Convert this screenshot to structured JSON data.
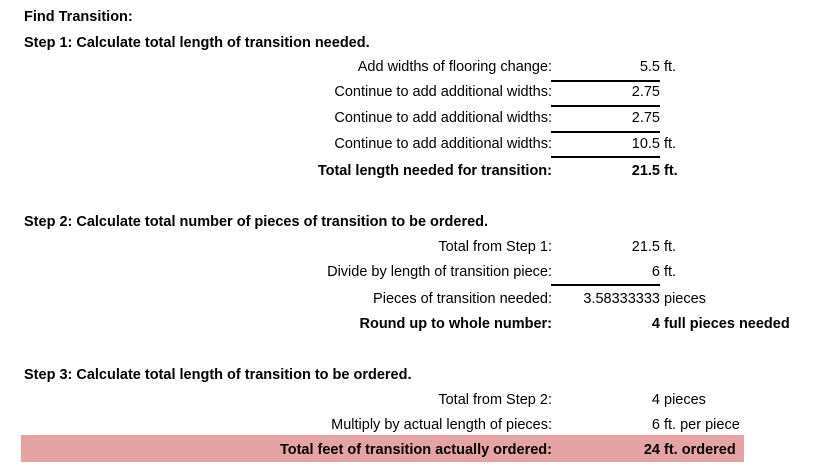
{
  "title": "Find Transition:",
  "step1": {
    "heading": "Step 1: Calculate total length of transition needed.",
    "rows": [
      {
        "label": "Add widths of flooring change:",
        "value": "5.5",
        "unit": "ft."
      },
      {
        "label": "Continue to add additional widths:",
        "value": "2.75",
        "unit": ""
      },
      {
        "label": "Continue to add additional widths:",
        "value": "2.75",
        "unit": ""
      },
      {
        "label": "Continue to add additional widths:",
        "value": "10.5",
        "unit": "ft."
      },
      {
        "label": "Total length needed for transition:",
        "value": "21.5",
        "unit": "ft."
      }
    ]
  },
  "step2": {
    "heading": "Step 2: Calculate total number of pieces of transition to be ordered.",
    "rows": [
      {
        "label": "Total from Step 1:",
        "value": "21.5",
        "unit": "ft."
      },
      {
        "label": "Divide by length of transition piece:",
        "value": "6",
        "unit": "ft."
      },
      {
        "label": "Pieces of transition needed:",
        "value": "3.58333333",
        "unit": "pieces"
      },
      {
        "label": "Round up to whole number:",
        "value": "4",
        "unit": "full pieces needed"
      }
    ]
  },
  "step3": {
    "heading": "Step 3: Calculate total length of transition to be ordered.",
    "rows": [
      {
        "label": "Total from Step 2:",
        "value": "4",
        "unit": "pieces"
      },
      {
        "label": "Multiply by actual length of pieces:",
        "value": "6",
        "unit": "ft. per piece"
      },
      {
        "label": "Total feet of transition actually ordered:",
        "value": "24",
        "unit": "ft. ordered"
      }
    ]
  },
  "colors": {
    "highlight": "#e6a3a3"
  }
}
